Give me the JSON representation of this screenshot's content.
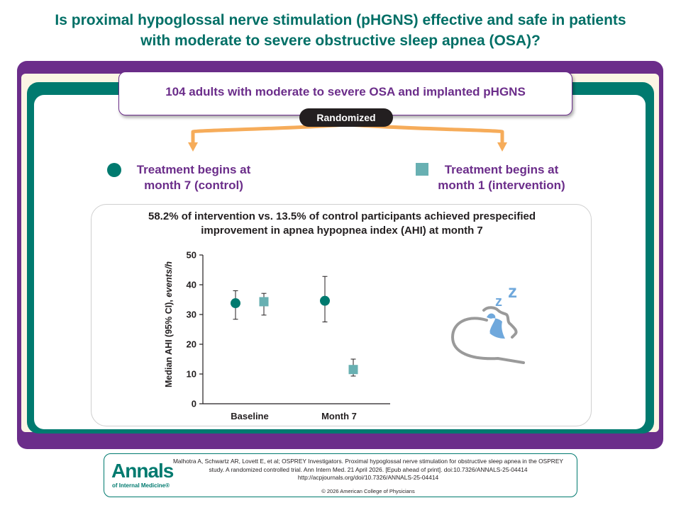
{
  "header": {
    "title_line1": "Is proximal hypoglossal nerve stimulation (pHGNS) effective and safe in patients",
    "title_line2": "with moderate to severe obstructive sleep apnea (OSA)?"
  },
  "population": {
    "text": "104 adults with moderate to severe OSA and implanted pHGNS"
  },
  "randomized_label": "Randomized",
  "arms": {
    "control": {
      "line1": "Treatment begins at",
      "line2": "month 7 (control)"
    },
    "intervention": {
      "line1": "Treatment begins at",
      "line2": "month 1 (intervention)"
    }
  },
  "result": {
    "line1": "58.2% of intervention vs. 13.5% of control participants achieved prespecified",
    "line2": "improvement in apnea hypopnea index (AHI) at month 7"
  },
  "chart_data": {
    "type": "scatter",
    "ylabel_prefix": "Median AHI (95% CI), ",
    "ylabel_unit": "events/h",
    "ylim": [
      0,
      50
    ],
    "yticks": [
      "0",
      "10",
      "20",
      "30",
      "40",
      "50"
    ],
    "categories": [
      "Baseline",
      "Month 7"
    ],
    "series": [
      {
        "marker": "circle",
        "color": "#007a6f",
        "points": [
          {
            "y": 33.8,
            "lo": 28.4,
            "hi": 38.0
          },
          {
            "y": 34.6,
            "lo": 27.5,
            "hi": 42.8
          }
        ]
      },
      {
        "marker": "square",
        "color": "#68b0b2",
        "points": [
          {
            "y": 34.3,
            "lo": 29.8,
            "hi": 37.1
          },
          {
            "y": 11.5,
            "lo": 9.3,
            "hi": 15.0
          }
        ]
      }
    ]
  },
  "citation": {
    "logo_word": "Annals",
    "logo_sub": "of Internal Medicine®",
    "line1": "Malhotra A, Schwartz AR, Lovett E, et al; OSPREY Investigators. Proximal hypoglossal nerve stimulation for obstructive sleep apnea in the OSPREY",
    "line2": "study. A randomized controlled trial. Ann Intern Med. 21 April 2026. [Epub ahead of print]. doi:10.7326/ANNALS-25-04414",
    "line3": "http://acpjournals.org/doi/10.7326/ANNALS-25-04414",
    "copyright": "© 2026 American College of Physicians"
  },
  "colors": {
    "teal": "#007a6f",
    "purple": "#6b2d8a",
    "arrow_orange": "#f6ac5a",
    "light_teal": "#68b0b2",
    "sleep_blue": "#6fa8dc"
  },
  "icons": {
    "sleep": "sleeping-head-icon"
  }
}
